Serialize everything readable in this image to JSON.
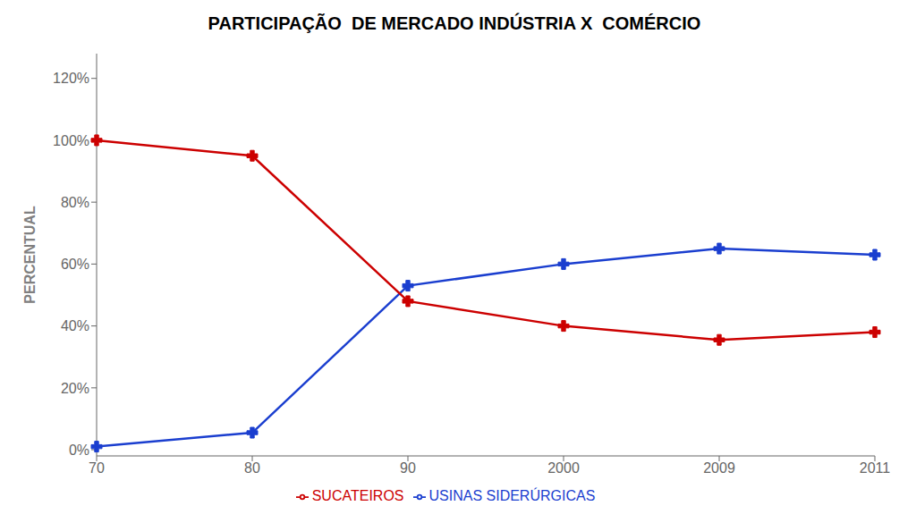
{
  "chart_data": {
    "type": "line",
    "title": "PARTICIPAÇÃO  DE MERCADO INDÚSTRIA X  COMÉRCIO",
    "y_label": "PERCENTUAL",
    "categories": [
      "70",
      "80",
      "90",
      "2000",
      "2009",
      "2011"
    ],
    "series": [
      {
        "name": "USINAS SIDERÚRGICAS",
        "color": "#1a3ecf",
        "marker": "plus",
        "values": [
          0.01,
          0.055,
          0.53,
          0.6,
          0.65,
          0.63
        ]
      },
      {
        "name": "SUCATEIROS",
        "color": "#cc0000",
        "marker": "plus",
        "values": [
          1.0,
          0.95,
          0.48,
          0.4,
          0.355,
          0.38
        ]
      }
    ],
    "ylim": [
      -0.02,
      1.28
    ],
    "yticks": [
      {
        "value": 0.0,
        "label": "0%"
      },
      {
        "value": 0.2,
        "label": "20%"
      },
      {
        "value": 0.4,
        "label": "40%"
      },
      {
        "value": 0.6,
        "label": "60%"
      },
      {
        "value": 0.8,
        "label": "80%"
      },
      {
        "value": 1.0,
        "label": "100%"
      },
      {
        "value": 1.2,
        "label": "120%"
      }
    ],
    "grid": false,
    "legend": "bottom"
  }
}
